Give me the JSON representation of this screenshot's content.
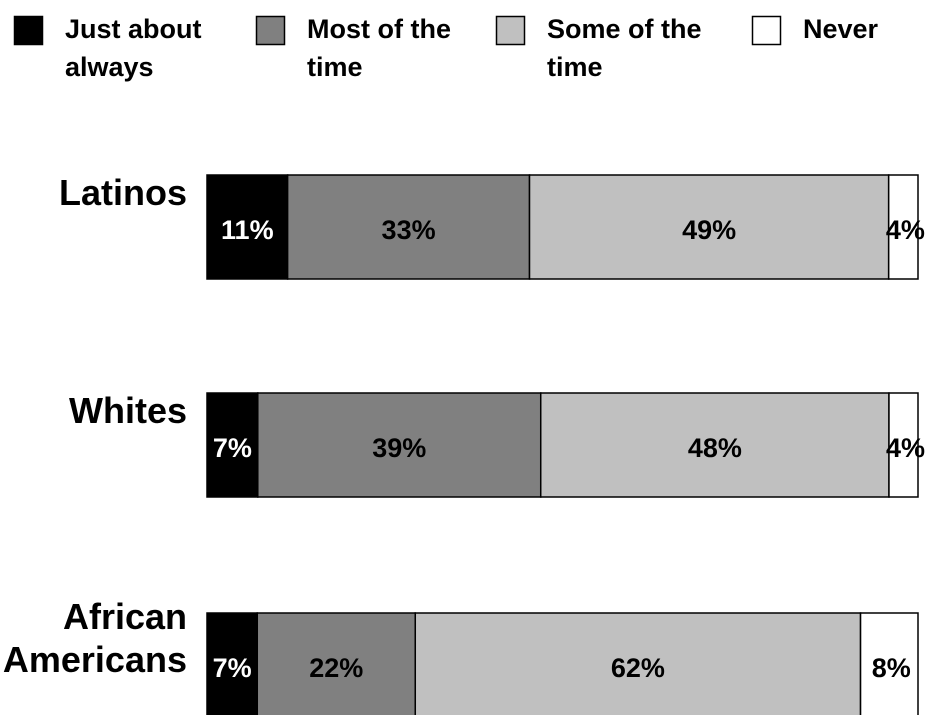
{
  "chart_data": {
    "type": "bar",
    "orientation": "horizontal",
    "stacked": true,
    "unit": "%",
    "legend_position": "top",
    "categories": [
      "Latinos",
      "Whites",
      "African Americans"
    ],
    "category_label_lines": [
      [
        "Latinos"
      ],
      [
        "Whites"
      ],
      [
        "African",
        "Americans"
      ]
    ],
    "series": [
      {
        "name": "Just about always",
        "legend_lines": [
          "Just about",
          "always"
        ],
        "color": "#000000",
        "label_color": "#ffffff",
        "values": [
          11,
          7,
          7
        ]
      },
      {
        "name": "Most of the time",
        "legend_lines": [
          "Most of the",
          "time"
        ],
        "color": "#808080",
        "label_color": "#000000",
        "values": [
          33,
          39,
          22
        ]
      },
      {
        "name": "Some of the time",
        "legend_lines": [
          "Some of the",
          "time"
        ],
        "color": "#c0c0c0",
        "label_color": "#000000",
        "values": [
          49,
          48,
          62
        ]
      },
      {
        "name": "Never",
        "legend_lines": [
          "Never"
        ],
        "color": "#ffffff",
        "label_color": "#000000",
        "values": [
          4,
          4,
          8
        ]
      }
    ],
    "data_labels": [
      [
        "11%",
        "33%",
        "49%",
        "4%"
      ],
      [
        "7%",
        "39%",
        "48%",
        "4%"
      ],
      [
        "7%",
        "22%",
        "62%",
        "8%"
      ]
    ],
    "xlim": [
      0,
      100
    ],
    "grid": false
  }
}
